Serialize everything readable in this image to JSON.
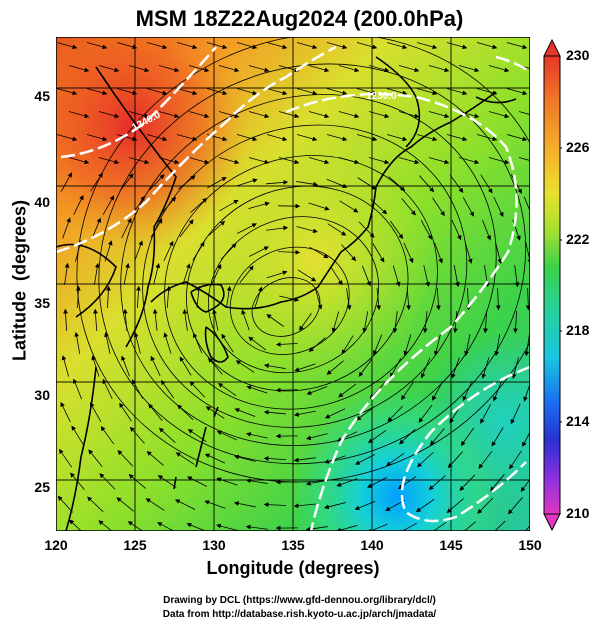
{
  "title": "MSM 18Z22Aug2024 (200.0hPa)",
  "x_axis": {
    "label": "Longitude (degrees)",
    "ticks": [
      "120",
      "125",
      "130",
      "135",
      "140",
      "145",
      "150"
    ]
  },
  "y_axis": {
    "label": "Latitude  (degrees)",
    "ticks": [
      "25",
      "30",
      "35",
      "40",
      "45"
    ]
  },
  "colorbar": {
    "ticks": [
      "230",
      "226",
      "222",
      "218",
      "214",
      "210"
    ],
    "min": 210,
    "max": 230
  },
  "contour_labels": [
    "1240.0",
    "1230.0"
  ],
  "credits": {
    "line1": "Drawing by DCL (https://www.gfd-dennou.org/library/dcl/)",
    "line2": "Data from http://database.rish.kyoto-u.ac.jp/arch/jmadata/"
  },
  "chart_data": {
    "type": "heatmap",
    "title": "MSM 18Z22Aug2024 (200.0hPa)",
    "xlabel": "Longitude (degrees)",
    "ylabel": "Latitude  (degrees)",
    "xlim": [
      120,
      150
    ],
    "ylim": [
      22.4,
      47.6
    ],
    "colorbar_range": [
      210,
      230
    ],
    "colorbar_ticks": [
      210,
      214,
      218,
      222,
      226,
      230
    ],
    "contour_labels": [
      "1240.0",
      "1230.0"
    ],
    "grid": true
  }
}
